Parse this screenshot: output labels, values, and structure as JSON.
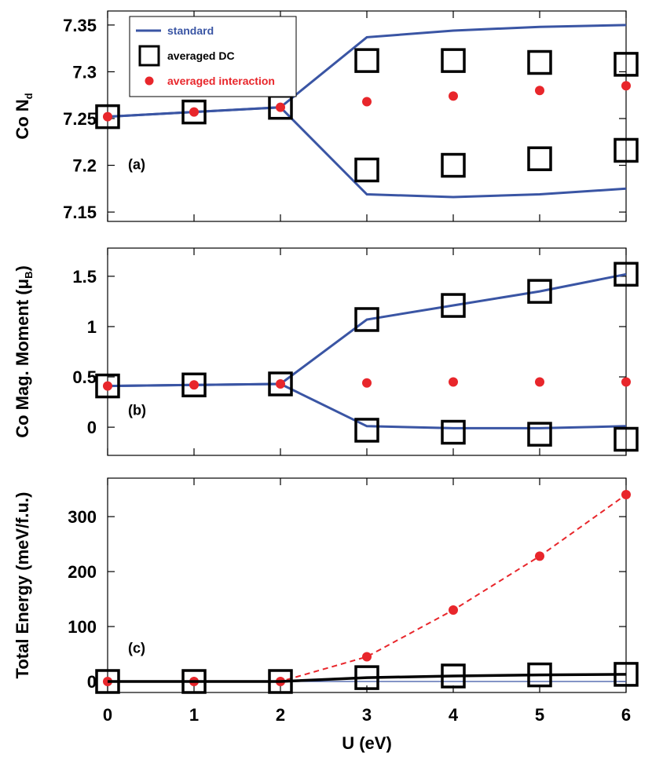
{
  "colors": {
    "standard": "#3a55a4",
    "averaged_dc": "#000000",
    "averaged_interaction": "#e8262b"
  },
  "chart_data": [
    {
      "type": "line",
      "panel_label": "(a)",
      "ylabel": "Co N",
      "ylabel_sub": "d",
      "xlabel": "",
      "x": [
        0,
        1,
        2,
        3,
        4,
        5,
        6
      ],
      "xlim": [
        0,
        6
      ],
      "ylim": [
        7.14,
        7.365
      ],
      "y_ticks": [
        7.15,
        7.2,
        7.25,
        7.3,
        7.35
      ],
      "y_tick_labels": [
        "7.15",
        "7.2",
        "7.25",
        "7.3",
        "7.35"
      ],
      "legend": {
        "placement": "top-left",
        "entries": [
          {
            "label": "standard",
            "series": "standard"
          },
          {
            "label": "averaged DC",
            "series": "averaged_dc"
          },
          {
            "label": "averaged interaction",
            "series": "averaged_interaction"
          }
        ]
      },
      "series": [
        {
          "name": "standard",
          "kind": "line",
          "values": [
            7.252,
            7.257,
            7.262,
            7.337,
            7.344,
            7.348,
            7.35
          ]
        },
        {
          "name": "standard",
          "kind": "line",
          "values": [
            7.252,
            7.257,
            7.262,
            7.169,
            7.166,
            7.169,
            7.175
          ]
        },
        {
          "name": "averaged DC",
          "kind": "square",
          "values": [
            7.252,
            7.257,
            7.262,
            7.312,
            7.312,
            7.31,
            7.308
          ]
        },
        {
          "name": "averaged DC",
          "kind": "square",
          "values": [
            null,
            null,
            null,
            7.195,
            7.2,
            7.207,
            7.216
          ]
        },
        {
          "name": "averaged interaction",
          "kind": "dot",
          "values": [
            7.252,
            7.257,
            7.262,
            7.268,
            7.274,
            7.28,
            7.285
          ]
        }
      ]
    },
    {
      "type": "line",
      "panel_label": "(b)",
      "ylabel": "Co Mag. Moment (μ",
      "ylabel_sub": "B",
      "ylabel_end": ")",
      "xlabel": "",
      "x": [
        0,
        1,
        2,
        3,
        4,
        5,
        6
      ],
      "xlim": [
        0,
        6
      ],
      "ylim": [
        -0.28,
        1.78
      ],
      "y_ticks": [
        0,
        0.5,
        1,
        1.5
      ],
      "y_tick_labels": [
        "0",
        "0.5",
        "1",
        "1.5"
      ],
      "series": [
        {
          "name": "standard",
          "kind": "line",
          "values": [
            0.41,
            0.42,
            0.43,
            1.07,
            1.21,
            1.35,
            1.52
          ]
        },
        {
          "name": "standard",
          "kind": "line",
          "values": [
            0.41,
            0.42,
            0.43,
            0.01,
            -0.01,
            -0.01,
            0.01
          ]
        },
        {
          "name": "averaged DC",
          "kind": "square",
          "values": [
            0.41,
            0.42,
            0.43,
            1.07,
            1.21,
            1.35,
            1.52
          ]
        },
        {
          "name": "averaged DC",
          "kind": "square",
          "values": [
            null,
            null,
            null,
            -0.03,
            -0.05,
            -0.07,
            -0.12
          ]
        },
        {
          "name": "averaged interaction",
          "kind": "dot",
          "values": [
            0.41,
            0.42,
            0.43,
            0.44,
            0.45,
            0.45,
            0.45
          ]
        }
      ]
    },
    {
      "type": "line",
      "panel_label": "(c)",
      "ylabel": "Total Energy (meV/f.u.)",
      "xlabel": "U (eV)",
      "x": [
        0,
        1,
        2,
        3,
        4,
        5,
        6
      ],
      "x_tick_labels": [
        "0",
        "1",
        "2",
        "3",
        "4",
        "5",
        "6"
      ],
      "xlim": [
        0,
        6
      ],
      "ylim": [
        -20,
        370
      ],
      "y_ticks": [
        0,
        100,
        200,
        300
      ],
      "y_tick_labels": [
        "0",
        "100",
        "200",
        "300"
      ],
      "series": [
        {
          "name": "standard",
          "kind": "thin-line",
          "values": [
            0,
            0,
            0,
            0,
            0,
            0,
            0
          ]
        },
        {
          "name": "averaged DC",
          "kind": "line-square",
          "values": [
            0,
            0,
            0,
            7,
            10,
            12,
            13
          ]
        },
        {
          "name": "averaged interaction",
          "kind": "dashed-dot",
          "values": [
            0,
            0,
            0,
            45,
            130,
            228,
            340
          ]
        }
      ]
    }
  ]
}
